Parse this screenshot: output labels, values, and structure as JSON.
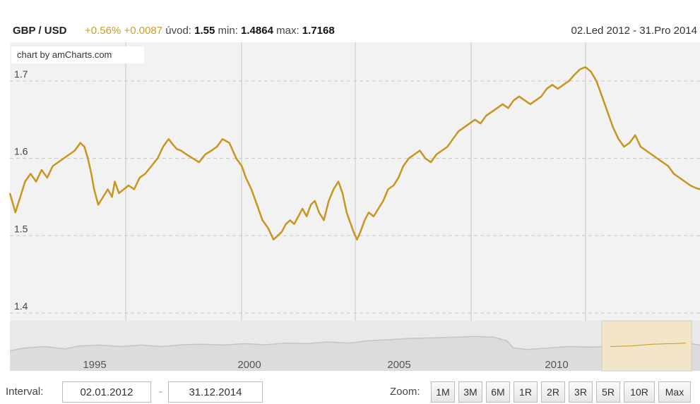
{
  "header": {
    "pair": "GBP / USD",
    "change_pct": "+0.56%",
    "change_abs": "+0.0087",
    "open_label": "úvod:",
    "open_value": "1.55",
    "min_label": "min:",
    "min_value": "1.4864",
    "max_label": "max:",
    "max_value": "1.7168",
    "date_range": "02.Led 2012 - 31.Pro 2014"
  },
  "credit": "chart by amCharts.com",
  "chart_data": {
    "type": "line",
    "y_ticks": [
      "1.4",
      "1.5",
      "1.6",
      "1.7"
    ],
    "ylim": [
      1.39,
      1.75
    ],
    "grid": true,
    "series": [
      {
        "color": "#c8961e",
        "x": [
          0,
          0.008,
          0.015,
          0.022,
          0.03,
          0.038,
          0.046,
          0.054,
          0.062,
          0.07,
          0.078,
          0.086,
          0.094,
          0.102,
          0.108,
          0.113,
          0.118,
          0.122,
          0.128,
          0.135,
          0.142,
          0.148,
          0.152,
          0.158,
          0.165,
          0.172,
          0.18,
          0.188,
          0.196,
          0.205,
          0.214,
          0.222,
          0.23,
          0.236,
          0.242,
          0.248,
          0.256,
          0.265,
          0.274,
          0.283,
          0.292,
          0.3,
          0.308,
          0.318,
          0.328,
          0.336,
          0.342,
          0.35,
          0.358,
          0.366,
          0.374,
          0.382,
          0.388,
          0.394,
          0.4,
          0.406,
          0.412,
          0.418,
          0.424,
          0.43,
          0.436,
          0.442,
          0.448,
          0.455,
          0.462,
          0.469,
          0.476,
          0.482,
          0.488,
          0.494,
          0.498,
          0.503,
          0.508,
          0.514,
          0.52,
          0.527,
          0.534,
          0.541,
          0.548,
          0.556,
          0.563,
          0.57,
          0.578,
          0.586,
          0.594,
          0.602,
          0.61,
          0.618,
          0.626,
          0.634,
          0.642,
          0.65,
          0.658,
          0.666,
          0.674,
          0.682,
          0.69,
          0.698,
          0.706,
          0.714,
          0.722,
          0.73,
          0.738,
          0.746,
          0.754,
          0.762,
          0.77,
          0.778,
          0.786,
          0.794,
          0.802,
          0.81,
          0.818,
          0.826,
          0.834,
          0.842,
          0.85,
          0.858,
          0.866,
          0.874,
          0.882,
          0.89,
          0.898,
          0.906,
          0.914,
          0.922,
          0.93,
          0.938,
          0.946,
          0.954,
          0.962,
          0.97,
          0.978,
          0.986,
          0.993,
          1.0
        ],
        "y": [
          1.555,
          1.53,
          1.55,
          1.57,
          1.58,
          1.57,
          1.585,
          1.575,
          1.59,
          1.595,
          1.6,
          1.605,
          1.61,
          1.62,
          1.615,
          1.6,
          1.58,
          1.56,
          1.54,
          1.55,
          1.56,
          1.55,
          1.57,
          1.555,
          1.56,
          1.565,
          1.56,
          1.575,
          1.58,
          1.59,
          1.6,
          1.615,
          1.625,
          1.618,
          1.612,
          1.61,
          1.605,
          1.6,
          1.595,
          1.605,
          1.61,
          1.615,
          1.625,
          1.62,
          1.6,
          1.59,
          1.575,
          1.56,
          1.54,
          1.52,
          1.51,
          1.495,
          1.5,
          1.505,
          1.515,
          1.52,
          1.515,
          1.525,
          1.535,
          1.525,
          1.54,
          1.545,
          1.53,
          1.52,
          1.545,
          1.56,
          1.57,
          1.555,
          1.53,
          1.515,
          1.505,
          1.495,
          1.505,
          1.52,
          1.53,
          1.525,
          1.535,
          1.545,
          1.56,
          1.565,
          1.575,
          1.59,
          1.6,
          1.605,
          1.61,
          1.6,
          1.595,
          1.605,
          1.61,
          1.615,
          1.625,
          1.635,
          1.64,
          1.645,
          1.65,
          1.645,
          1.655,
          1.66,
          1.665,
          1.67,
          1.665,
          1.675,
          1.68,
          1.675,
          1.67,
          1.675,
          1.68,
          1.69,
          1.695,
          1.69,
          1.695,
          1.7,
          1.708,
          1.715,
          1.718,
          1.712,
          1.7,
          1.68,
          1.66,
          1.64,
          1.625,
          1.615,
          1.62,
          1.63,
          1.615,
          1.61,
          1.605,
          1.6,
          1.595,
          1.59,
          1.58,
          1.575,
          1.57,
          1.565,
          1.562,
          1.56
        ]
      }
    ]
  },
  "navigator": {
    "year_labels": [
      "1995",
      "2000",
      "2005",
      "2010"
    ],
    "series": [
      {
        "x": [
          0,
          0.02,
          0.05,
          0.08,
          0.1,
          0.13,
          0.16,
          0.19,
          0.22,
          0.25,
          0.28,
          0.31,
          0.34,
          0.37,
          0.4,
          0.43,
          0.46,
          0.49,
          0.52,
          0.55,
          0.58,
          0.61,
          0.64,
          0.67,
          0.7,
          0.72,
          0.73,
          0.75,
          0.78,
          0.81,
          0.84,
          0.87,
          0.9,
          0.93,
          0.96,
          0.98,
          1.0
        ],
        "y": [
          0.35,
          0.45,
          0.5,
          0.42,
          0.52,
          0.55,
          0.5,
          0.55,
          0.5,
          0.56,
          0.58,
          0.55,
          0.6,
          0.56,
          0.62,
          0.6,
          0.66,
          0.62,
          0.7,
          0.74,
          0.78,
          0.8,
          0.82,
          0.85,
          0.83,
          0.7,
          0.45,
          0.4,
          0.45,
          0.5,
          0.48,
          0.5,
          0.52,
          0.58,
          0.6,
          0.62,
          0.55
        ]
      }
    ]
  },
  "footer": {
    "interval_label": "Interval:",
    "start_date": "02.01.2012",
    "separator": "-",
    "end_date": "31.12.2014",
    "zoom_label": "Zoom:",
    "zoom_buttons": [
      "1M",
      "3M",
      "6M",
      "1R",
      "2R",
      "3R",
      "5R",
      "10R",
      "Max"
    ]
  }
}
